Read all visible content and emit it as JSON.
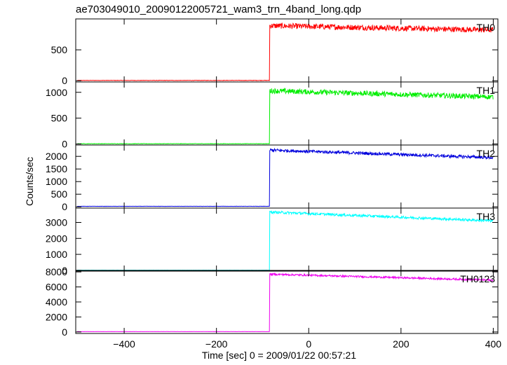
{
  "chart_data": {
    "type": "line",
    "title": "ae703049010_20090122005721_wam3_trn_4band_long.qdp",
    "xlabel": "Time [sec] 0 = 2009/01/22 00:57:21",
    "ylabel": "Counts/sec",
    "xlim": [
      -505,
      410
    ],
    "x_ticks": [
      -400,
      -200,
      0,
      200,
      400
    ],
    "x_tick_labels": [
      "−400",
      "−200",
      "0",
      "200",
      "400"
    ],
    "grid": false,
    "legend": "none",
    "panels": [
      {
        "label": "TH0",
        "color": "#ff0000",
        "ylim": [
          -20,
          1000
        ],
        "y_ticks": [
          0,
          500
        ],
        "y_tick_labels": [
          "0",
          "500"
        ],
        "pre_level": 5,
        "onset_time": -85,
        "post_start": 890,
        "post_end": 820,
        "noise": 45
      },
      {
        "label": "TH1",
        "color": "#00ee00",
        "ylim": [
          -20,
          1200
        ],
        "y_ticks": [
          0,
          500,
          1000
        ],
        "y_tick_labels": [
          "0",
          "500",
          "1000"
        ],
        "pre_level": 5,
        "onset_time": -85,
        "post_start": 1030,
        "post_end": 910,
        "noise": 50
      },
      {
        "label": "TH2",
        "color": "#0000dd",
        "ylim": [
          -50,
          2450
        ],
        "y_ticks": [
          0,
          500,
          1000,
          1500,
          2000
        ],
        "y_tick_labels": [
          "0",
          "500",
          "1000",
          "1500",
          "2000"
        ],
        "pre_level": 20,
        "onset_time": -85,
        "post_start": 2250,
        "post_end": 1950,
        "noise": 60
      },
      {
        "label": "TH3",
        "color": "#00ffff",
        "ylim": [
          -50,
          3900
        ],
        "y_ticks": [
          0,
          1000,
          2000,
          3000
        ],
        "y_tick_labels": [
          "0",
          "1000",
          "2000",
          "3000"
        ],
        "pre_level": 10,
        "onset_time": -85,
        "post_start": 3650,
        "post_end": 3100,
        "noise": 80
      },
      {
        "label": "TH0123",
        "color": "#ee00ee",
        "ylim": [
          -200,
          8200
        ],
        "y_ticks": [
          0,
          2000,
          4000,
          6000,
          8000
        ],
        "y_tick_labels": [
          "0",
          "2000",
          "4000",
          "6000",
          "8000"
        ],
        "pre_level": 50,
        "onset_time": -85,
        "post_start": 7700,
        "post_end": 6900,
        "noise": 120
      }
    ]
  }
}
